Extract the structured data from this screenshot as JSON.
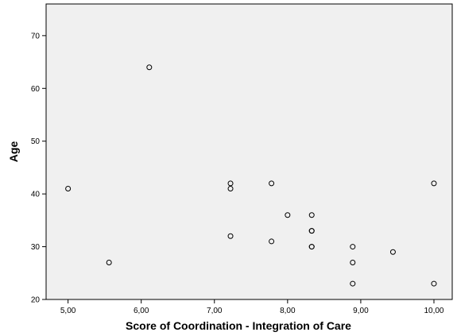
{
  "chart_data": {
    "type": "scatter",
    "xlabel": "Score of Coordination - Integration of Care",
    "ylabel": "Age",
    "xlim": [
      4.7,
      10.25
    ],
    "ylim": [
      20,
      76
    ],
    "x_ticks": [
      5,
      6,
      7,
      8,
      9,
      10
    ],
    "x_tick_labels": [
      "5,00",
      "6,00",
      "7,00",
      "8,00",
      "9,00",
      "10,00"
    ],
    "y_ticks": [
      20,
      30,
      40,
      50,
      60,
      70
    ],
    "y_tick_labels": [
      "20",
      "30",
      "40",
      "50",
      "60",
      "70"
    ],
    "grid": false,
    "series": [
      {
        "points": [
          {
            "x": 5.0,
            "y": 41
          },
          {
            "x": 5.56,
            "y": 27
          },
          {
            "x": 6.11,
            "y": 64
          },
          {
            "x": 7.22,
            "y": 42
          },
          {
            "x": 7.22,
            "y": 41
          },
          {
            "x": 7.22,
            "y": 32
          },
          {
            "x": 7.78,
            "y": 42
          },
          {
            "x": 7.78,
            "y": 31
          },
          {
            "x": 8.0,
            "y": 36
          },
          {
            "x": 8.33,
            "y": 36
          },
          {
            "x": 8.33,
            "y": 33
          },
          {
            "x": 8.33,
            "y": 33
          },
          {
            "x": 8.33,
            "y": 30
          },
          {
            "x": 8.33,
            "y": 30
          },
          {
            "x": 8.89,
            "y": 30
          },
          {
            "x": 8.89,
            "y": 27
          },
          {
            "x": 8.89,
            "y": 23
          },
          {
            "x": 9.44,
            "y": 29
          },
          {
            "x": 10.0,
            "y": 42
          },
          {
            "x": 10.0,
            "y": 23
          }
        ]
      }
    ]
  }
}
